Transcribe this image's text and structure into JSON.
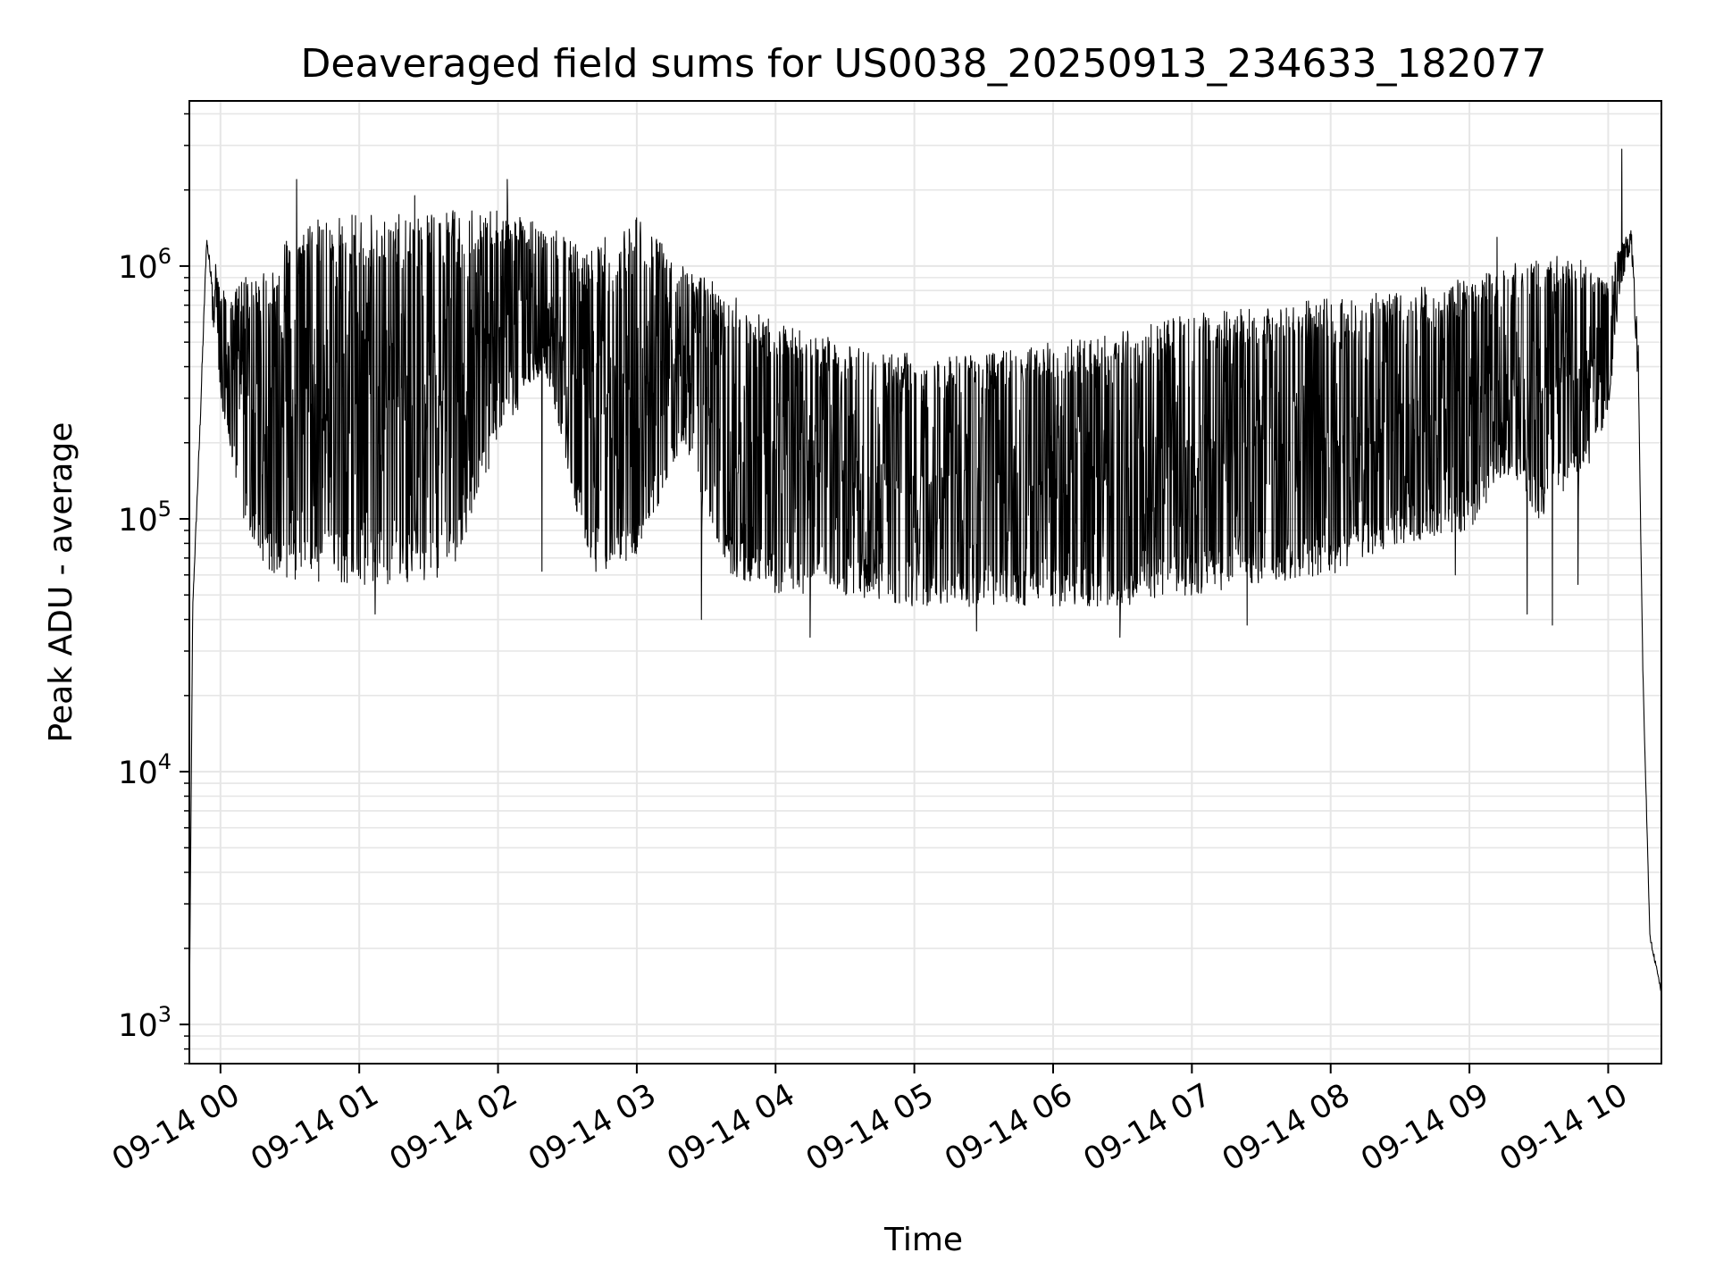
{
  "chart_data": {
    "type": "line",
    "title": "Deaveraged field sums for US0038_20250913_234633_182077",
    "xlabel": "Time",
    "ylabel": "Peak ADU - average",
    "y_scale": "log",
    "ylim": [
      700,
      4500000
    ],
    "xlim": [
      "2025-09-13T23:46:33",
      "2025-09-14T10:23:00"
    ],
    "grid": true,
    "line_color": "#000000",
    "grid_color": "#e6e6e6",
    "x_ticks": [
      {
        "label": "09-14 00",
        "time": "2025-09-14T00:00"
      },
      {
        "label": "09-14 01",
        "time": "2025-09-14T01:00"
      },
      {
        "label": "09-14 02",
        "time": "2025-09-14T02:00"
      },
      {
        "label": "09-14 03",
        "time": "2025-09-14T03:00"
      },
      {
        "label": "09-14 04",
        "time": "2025-09-14T04:00"
      },
      {
        "label": "09-14 05",
        "time": "2025-09-14T05:00"
      },
      {
        "label": "09-14 06",
        "time": "2025-09-14T06:00"
      },
      {
        "label": "09-14 07",
        "time": "2025-09-14T07:00"
      },
      {
        "label": "09-14 08",
        "time": "2025-09-14T08:00"
      },
      {
        "label": "09-14 09",
        "time": "2025-09-14T09:00"
      },
      {
        "label": "09-14 10",
        "time": "2025-09-14T10:00"
      }
    ],
    "y_ticks": [
      {
        "value": 1000,
        "base": "10",
        "exponent": "3"
      },
      {
        "value": 10000,
        "base": "10",
        "exponent": "4"
      },
      {
        "value": 100000,
        "base": "10",
        "exponent": "5"
      },
      {
        "value": 1000000,
        "base": "10",
        "exponent": "6"
      }
    ],
    "series": [
      {
        "envelope": [
          {
            "t": "2025-09-13T23:46:33",
            "lo": 1000,
            "hi": 1200
          },
          {
            "t": "2025-09-13T23:48:00",
            "lo": 40000,
            "hi": 50000
          },
          {
            "t": "2025-09-13T23:51:00",
            "lo": 150000,
            "hi": 300000
          },
          {
            "t": "2025-09-13T23:54:00",
            "lo": 1000000,
            "hi": 1600000
          },
          {
            "t": "2025-09-14T00:00:00",
            "lo": 300000,
            "hi": 800000
          },
          {
            "t": "2025-09-14T00:10:00",
            "lo": 100000,
            "hi": 900000
          },
          {
            "t": "2025-09-14T00:20:00",
            "lo": 60000,
            "hi": 1000000
          },
          {
            "t": "2025-09-14T00:40:00",
            "lo": 55000,
            "hi": 1700000
          },
          {
            "t": "2025-09-14T01:00:00",
            "lo": 55000,
            "hi": 1600000
          },
          {
            "t": "2025-09-14T01:20:00",
            "lo": 55000,
            "hi": 1600000
          },
          {
            "t": "2025-09-14T01:40:00",
            "lo": 60000,
            "hi": 1700000
          },
          {
            "t": "2025-09-14T02:00:00",
            "lo": 200000,
            "hi": 1700000
          },
          {
            "t": "2025-09-14T02:20:00",
            "lo": 400000,
            "hi": 1500000
          },
          {
            "t": "2025-09-14T02:40:00",
            "lo": 60000,
            "hi": 1200000
          },
          {
            "t": "2025-09-14T03:00:00",
            "lo": 70000,
            "hi": 1600000
          },
          {
            "t": "2025-09-14T03:20:00",
            "lo": 200000,
            "hi": 1000000
          },
          {
            "t": "2025-09-14T03:40:00",
            "lo": 60000,
            "hi": 800000
          },
          {
            "t": "2025-09-14T04:00:00",
            "lo": 50000,
            "hi": 600000
          },
          {
            "t": "2025-09-14T04:30:00",
            "lo": 50000,
            "hi": 500000
          },
          {
            "t": "2025-09-14T05:00:00",
            "lo": 45000,
            "hi": 450000
          },
          {
            "t": "2025-09-14T05:30:00",
            "lo": 45000,
            "hi": 450000
          },
          {
            "t": "2025-09-14T06:00:00",
            "lo": 45000,
            "hi": 500000
          },
          {
            "t": "2025-09-14T06:30:00",
            "lo": 45000,
            "hi": 550000
          },
          {
            "t": "2025-09-14T07:00:00",
            "lo": 50000,
            "hi": 650000
          },
          {
            "t": "2025-09-14T07:30:00",
            "lo": 55000,
            "hi": 700000
          },
          {
            "t": "2025-09-14T08:00:00",
            "lo": 60000,
            "hi": 750000
          },
          {
            "t": "2025-09-14T08:30:00",
            "lo": 80000,
            "hi": 800000
          },
          {
            "t": "2025-09-14T09:00:00",
            "lo": 90000,
            "hi": 900000
          },
          {
            "t": "2025-09-14T09:15:00",
            "lo": 150000,
            "hi": 1000000
          },
          {
            "t": "2025-09-14T09:30:00",
            "lo": 100000,
            "hi": 1100000
          },
          {
            "t": "2025-09-14T09:50:00",
            "lo": 150000,
            "hi": 1100000
          },
          {
            "t": "2025-09-14T10:00:00",
            "lo": 250000,
            "hi": 900000
          },
          {
            "t": "2025-09-14T10:05:00",
            "lo": 800000,
            "hi": 1200000
          },
          {
            "t": "2025-09-14T10:10:00",
            "lo": 1200000,
            "hi": 1400000
          },
          {
            "t": "2025-09-14T10:13:00",
            "lo": 300000,
            "hi": 500000
          },
          {
            "t": "2025-09-14T10:15:00",
            "lo": 20000,
            "hi": 30000
          },
          {
            "t": "2025-09-14T10:18:00",
            "lo": 2000,
            "hi": 2500
          },
          {
            "t": "2025-09-14T10:23:00",
            "lo": 1200,
            "hi": 1500
          }
        ],
        "outliers": [
          {
            "t": "2025-09-14T00:33:00",
            "y": 2200000
          },
          {
            "t": "2025-09-14T01:07:00",
            "y": 42000
          },
          {
            "t": "2025-09-14T01:24:00",
            "y": 1900000
          },
          {
            "t": "2025-09-14T02:04:00",
            "y": 2200000
          },
          {
            "t": "2025-09-14T02:19:00",
            "y": 62000
          },
          {
            "t": "2025-09-14T03:28:00",
            "y": 40000
          },
          {
            "t": "2025-09-14T04:15:00",
            "y": 34000
          },
          {
            "t": "2025-09-14T05:27:00",
            "y": 36000
          },
          {
            "t": "2025-09-14T06:29:00",
            "y": 34000
          },
          {
            "t": "2025-09-14T07:24:00",
            "y": 38000
          },
          {
            "t": "2025-09-14T08:54:00",
            "y": 60000
          },
          {
            "t": "2025-09-14T09:12:00",
            "y": 1300000
          },
          {
            "t": "2025-09-14T09:25:00",
            "y": 42000
          },
          {
            "t": "2025-09-14T09:36:00",
            "y": 38000
          },
          {
            "t": "2025-09-14T09:47:00",
            "y": 55000
          },
          {
            "t": "2025-09-14T10:06:00",
            "y": 2900000
          }
        ]
      }
    ]
  }
}
